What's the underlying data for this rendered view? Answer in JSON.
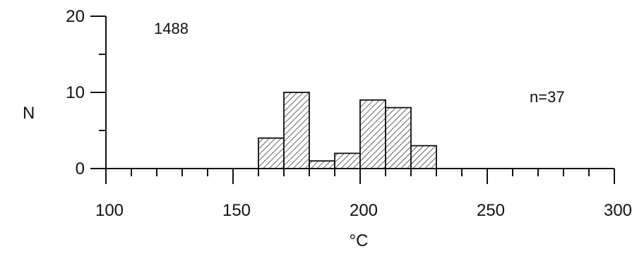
{
  "chart_data": {
    "type": "bar",
    "bin_width": 10,
    "bins": [
      {
        "x_start": 160,
        "x_end": 170,
        "count": 4
      },
      {
        "x_start": 170,
        "x_end": 180,
        "count": 10
      },
      {
        "x_start": 180,
        "x_end": 190,
        "count": 1
      },
      {
        "x_start": 190,
        "x_end": 200,
        "count": 2
      },
      {
        "x_start": 200,
        "x_end": 210,
        "count": 9
      },
      {
        "x_start": 210,
        "x_end": 220,
        "count": 8
      },
      {
        "x_start": 220,
        "x_end": 230,
        "count": 3
      }
    ],
    "xlabel": "°C",
    "ylabel": "N",
    "xlim": [
      100,
      300
    ],
    "ylim": [
      0,
      20
    ],
    "x_ticks": [
      100,
      150,
      200,
      250,
      300
    ],
    "x_minor_step": 10,
    "y_ticks": [
      0,
      10,
      20
    ],
    "y_minor_step": 5,
    "annotations": {
      "sample_id": "1488",
      "n_label": "n=37"
    },
    "bar_fill": "hatched",
    "grid": false,
    "colors": {
      "ink": "#111111",
      "bar_fill": "#ffffff"
    }
  }
}
